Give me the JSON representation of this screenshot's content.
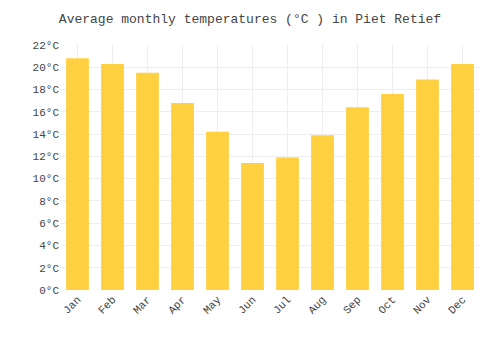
{
  "chart_data": {
    "type": "bar",
    "title": "Average monthly temperatures (°C ) in Piet Retief",
    "categories": [
      "Jan",
      "Feb",
      "Mar",
      "Apr",
      "May",
      "Jun",
      "Jul",
      "Aug",
      "Sep",
      "Oct",
      "Nov",
      "Dec"
    ],
    "values": [
      20.8,
      20.3,
      19.5,
      16.8,
      14.2,
      11.4,
      11.9,
      13.9,
      16.4,
      17.6,
      18.9,
      20.3
    ],
    "color": "#FFD040",
    "ylim": [
      0,
      22
    ],
    "yticks": [
      {
        "value": 0,
        "label": "0°C"
      },
      {
        "value": 2,
        "label": "2°C"
      },
      {
        "value": 4,
        "label": "4°C"
      },
      {
        "value": 6,
        "label": "6°C"
      },
      {
        "value": 8,
        "label": "8°C"
      },
      {
        "value": 10,
        "label": "10°C"
      },
      {
        "value": 12,
        "label": "12°C"
      },
      {
        "value": 14,
        "label": "14°C"
      },
      {
        "value": 16,
        "label": "16°C"
      },
      {
        "value": 18,
        "label": "18°C"
      },
      {
        "value": 20,
        "label": "20°C"
      },
      {
        "value": 22,
        "label": "22°C"
      }
    ],
    "grid": true
  }
}
